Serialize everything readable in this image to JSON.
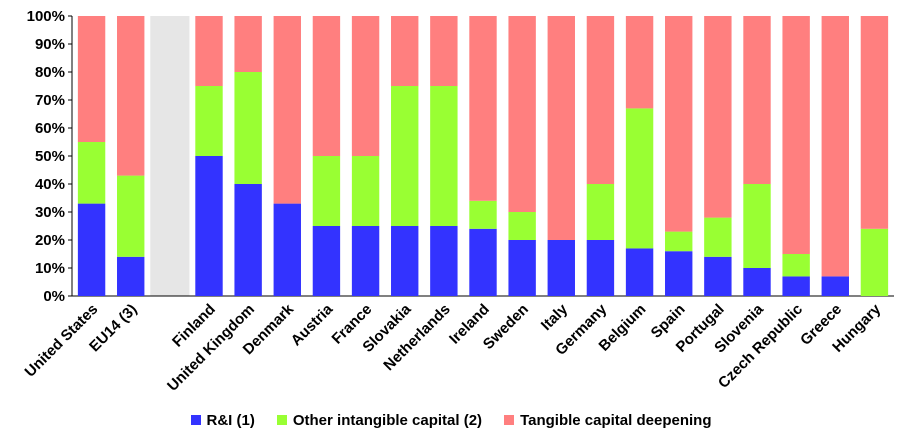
{
  "colors": {
    "rd": "#3333ff",
    "other": "#99ff33",
    "tangible": "#ff7f7f",
    "gap_band": "#e6e6e6"
  },
  "chart_data": {
    "type": "bar",
    "stacked": true,
    "title": "",
    "xlabel": "",
    "ylabel": "",
    "ylim": [
      0,
      100
    ],
    "yticks": [
      "0%",
      "10%",
      "20%",
      "30%",
      "40%",
      "50%",
      "60%",
      "70%",
      "80%",
      "90%",
      "100%"
    ],
    "grid": false,
    "legend_position": "bottom",
    "categories": [
      "United States",
      "EU14 (3)",
      "",
      "Finland",
      "United Kingdom",
      "Denmark",
      "Austria",
      "France",
      "Slovakia",
      "Netherlands",
      "Ireland",
      "Sweden",
      "Italy",
      "Germany",
      "Belgium",
      "Spain",
      "Portugal",
      "Slovenia",
      "Czech Republic",
      "Greece",
      "Hungary"
    ],
    "series": [
      {
        "name": "R&I (1)",
        "values": [
          33,
          14,
          null,
          50,
          40,
          33,
          25,
          25,
          25,
          25,
          24,
          20,
          20,
          20,
          17,
          16,
          14,
          10,
          7,
          7,
          0
        ]
      },
      {
        "name": "Other intangible capital (2)",
        "values": [
          22,
          29,
          null,
          25,
          40,
          0,
          25,
          25,
          50,
          50,
          10,
          10,
          0,
          20,
          50,
          7,
          14,
          30,
          8,
          0,
          24
        ]
      },
      {
        "name": "Tangible capital deepening",
        "values": [
          45,
          57,
          null,
          25,
          20,
          67,
          50,
          50,
          25,
          25,
          66,
          70,
          80,
          60,
          33,
          77,
          72,
          60,
          85,
          93,
          76
        ]
      }
    ]
  }
}
